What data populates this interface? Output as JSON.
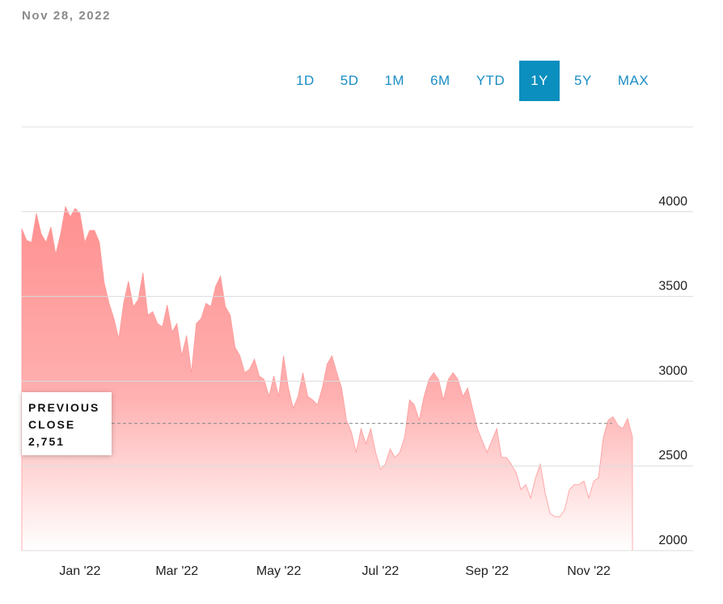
{
  "date": "Nov 28, 2022",
  "ranges": [
    "1D",
    "5D",
    "1M",
    "6M",
    "YTD",
    "1Y",
    "5Y",
    "MAX"
  ],
  "active_range": "1Y",
  "previous_close": {
    "label": "PREVIOUS CLOSE",
    "value": 2751,
    "value_label": "2,751"
  },
  "chart_data": {
    "type": "area",
    "color": "#ff9a9a",
    "categories": [
      null,
      null,
      null,
      null,
      null,
      null,
      null,
      null,
      null,
      null,
      null,
      null,
      "Jan '22",
      null,
      null,
      null,
      null,
      null,
      null,
      null,
      null,
      null,
      null,
      null,
      null,
      null,
      null,
      null,
      null,
      null,
      null,
      null,
      "Mar '22",
      null,
      null,
      null,
      null,
      null,
      null,
      null,
      null,
      null,
      null,
      null,
      null,
      null,
      null,
      null,
      null,
      null,
      null,
      null,
      null,
      "May '22",
      null,
      null,
      null,
      null,
      null,
      null,
      null,
      null,
      null,
      null,
      null,
      null,
      null,
      null,
      null,
      null,
      null,
      null,
      null,
      null,
      "Jul '22",
      null,
      null,
      null,
      null,
      null,
      null,
      null,
      null,
      null,
      null,
      null,
      null,
      null,
      null,
      null,
      null,
      null,
      null,
      null,
      null,
      null,
      "Sep '22",
      null,
      null,
      null,
      null,
      null,
      null,
      null,
      null,
      null,
      null,
      null,
      null,
      null,
      null,
      null,
      null,
      null,
      null,
      null,
      null,
      "Nov '22",
      null,
      null,
      null,
      null,
      null,
      null,
      null,
      null,
      null
    ],
    "values": [
      3900,
      3830,
      3820,
      3990,
      3870,
      3820,
      3910,
      3750,
      3870,
      4030,
      3970,
      4020,
      3990,
      3820,
      3890,
      3890,
      3820,
      3580,
      3460,
      3370,
      3250,
      3460,
      3590,
      3440,
      3480,
      3640,
      3390,
      3410,
      3340,
      3320,
      3450,
      3290,
      3340,
      3150,
      3270,
      3050,
      3340,
      3370,
      3460,
      3440,
      3560,
      3620,
      3440,
      3390,
      3200,
      3150,
      3050,
      3070,
      3130,
      3030,
      3010,
      2910,
      3030,
      2910,
      3150,
      2960,
      2840,
      2910,
      3050,
      2910,
      2890,
      2860,
      2960,
      3100,
      3150,
      3050,
      2960,
      2770,
      2700,
      2580,
      2720,
      2630,
      2720,
      2580,
      2480,
      2510,
      2600,
      2550,
      2580,
      2670,
      2890,
      2860,
      2770,
      2910,
      3010,
      3050,
      3010,
      2890,
      3010,
      3050,
      3010,
      2910,
      2960,
      2840,
      2720,
      2650,
      2580,
      2650,
      2720,
      2550,
      2550,
      2510,
      2460,
      2360,
      2390,
      2310,
      2430,
      2510,
      2340,
      2220,
      2200,
      2200,
      2240,
      2360,
      2390,
      2390,
      2410,
      2310,
      2410,
      2430,
      2670,
      2770,
      2790,
      2740,
      2720,
      2780,
      2670
    ],
    "ylim": [
      2000,
      4500
    ],
    "yticks": [
      2000,
      2500,
      3000,
      3500,
      4000
    ],
    "grid": true
  }
}
